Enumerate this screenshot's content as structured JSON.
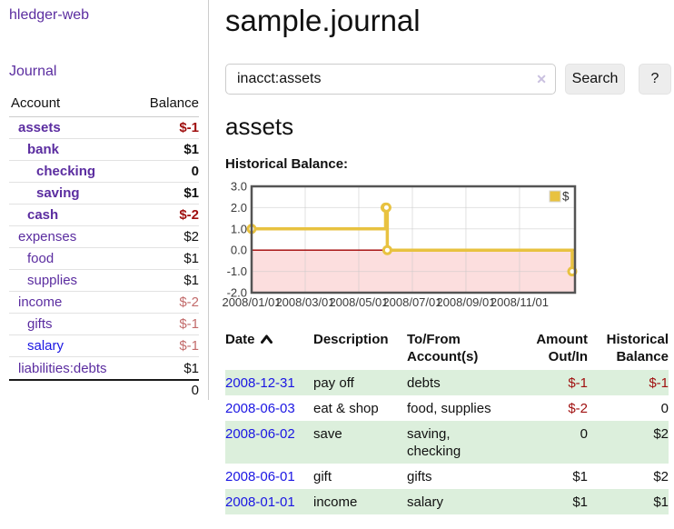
{
  "colors": {
    "link_purple": "#5b2da0",
    "link_blue": "#1b16e3",
    "text": "#111111",
    "negative": "#a01010",
    "negative_dim": "#c26b6b",
    "row_green": "#dcefdc"
  },
  "sidebar": {
    "brand": "hledger-web",
    "nav": {
      "journal": "Journal"
    },
    "accounts_table": {
      "col_account": "Account",
      "col_balance": "Balance",
      "rows": [
        {
          "name": "assets",
          "balance": "$-1",
          "level": 1,
          "bold": true,
          "name_color": "purple",
          "balance_color": "negative"
        },
        {
          "name": "bank",
          "balance": "$1",
          "level": 2,
          "bold": true,
          "name_color": "purple",
          "balance_color": "text"
        },
        {
          "name": "checking",
          "balance": "0",
          "level": 3,
          "bold": true,
          "name_color": "purple",
          "balance_color": "text"
        },
        {
          "name": "saving",
          "balance": "$1",
          "level": 3,
          "bold": true,
          "name_color": "purple",
          "balance_color": "text"
        },
        {
          "name": "cash",
          "balance": "$-2",
          "level": 2,
          "bold": true,
          "name_color": "purple",
          "balance_color": "negative"
        },
        {
          "name": "expenses",
          "balance": "$2",
          "level": 1,
          "bold": false,
          "name_color": "purple",
          "balance_color": "text"
        },
        {
          "name": "food",
          "balance": "$1",
          "level": 2,
          "bold": false,
          "name_color": "purple",
          "balance_color": "text"
        },
        {
          "name": "supplies",
          "balance": "$1",
          "level": 2,
          "bold": false,
          "name_color": "purple",
          "balance_color": "text"
        },
        {
          "name": "income",
          "balance": "$-2",
          "level": 1,
          "bold": false,
          "name_color": "purple",
          "balance_color": "negative_dim"
        },
        {
          "name": "gifts",
          "balance": "$-1",
          "level": 2,
          "bold": false,
          "name_color": "purple",
          "balance_color": "negative_dim"
        },
        {
          "name": "salary",
          "balance": "$-1",
          "level": 2,
          "bold": false,
          "name_color": "blue",
          "balance_color": "negative_dim"
        },
        {
          "name": "liabilities:debts",
          "balance": "$1",
          "level": 1,
          "bold": false,
          "name_color": "purple",
          "balance_color": "text"
        }
      ],
      "total": "0"
    }
  },
  "header": {
    "title": "sample.journal"
  },
  "search": {
    "value": "inacct:assets",
    "clear_icon": "✕",
    "search_label": "Search",
    "help_label": "?"
  },
  "account_page": {
    "heading": "assets",
    "chart_label": "Historical Balance:"
  },
  "chart_data": {
    "type": "line",
    "line_style": "step",
    "title": "Historical Balance:",
    "series": [
      {
        "name": "$",
        "color": "#e8c240",
        "points": [
          [
            "2008-01-01",
            1
          ],
          [
            "2008-06-01",
            2
          ],
          [
            "2008-06-02",
            2
          ],
          [
            "2008-06-03",
            0
          ],
          [
            "2008-12-31",
            -1
          ]
        ]
      }
    ],
    "x_tick_labels": [
      "2008/01/01",
      "2008/03/01",
      "2008/05/01",
      "2008/07/01",
      "2008/09/01",
      "2008/11/01"
    ],
    "y_tick_labels": [
      "3.0",
      "2.0",
      "1.0",
      "0.0",
      "-1.0",
      "-2.0"
    ],
    "ylim": [
      -2,
      3
    ],
    "xlim_months": [
      0,
      12.07
    ],
    "grid": true,
    "legend_position": "top-right",
    "legend_label": "$",
    "negative_region_color": "#fcdede",
    "zero_line_color": "#a00000",
    "marker": "open-circle"
  },
  "transactions": {
    "columns": [
      "Date",
      "Description",
      "To/From Account(s)",
      "Amount Out/In",
      "Historical Balance"
    ],
    "sort": "date-ascending",
    "rows": [
      {
        "date": "2008-12-31",
        "description": "pay off",
        "accounts": "debts",
        "amount": "$-1",
        "amount_negative": true,
        "balance": "$-1",
        "balance_negative": true
      },
      {
        "date": "2008-06-03",
        "description": "eat & shop",
        "accounts": "food, supplies",
        "amount": "$-2",
        "amount_negative": true,
        "balance": "0",
        "balance_negative": false
      },
      {
        "date": "2008-06-02",
        "description": "save",
        "accounts": "saving, checking",
        "amount": "0",
        "amount_negative": false,
        "balance": "$2",
        "balance_negative": false
      },
      {
        "date": "2008-06-01",
        "description": "gift",
        "accounts": "gifts",
        "amount": "$1",
        "amount_negative": false,
        "balance": "$2",
        "balance_negative": false
      },
      {
        "date": "2008-01-01",
        "description": "income",
        "accounts": "salary",
        "amount": "$1",
        "amount_negative": false,
        "balance": "$1",
        "balance_negative": false
      }
    ]
  }
}
